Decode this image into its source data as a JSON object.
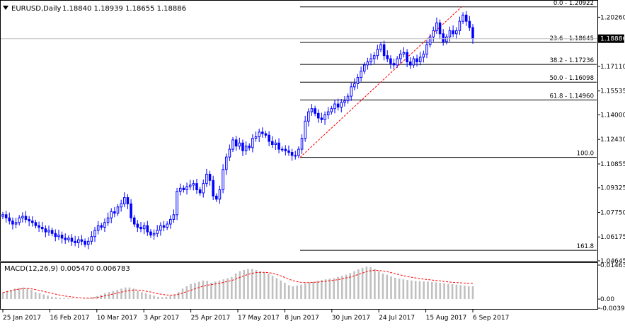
{
  "header": {
    "symbol_tf": "EURUSD,Daily",
    "ohlc": "1.18840 1.18939 1.18655 1.18886"
  },
  "indicator_header": {
    "macd_label": "MACD(12,26,9) 0.005470 0.006783"
  },
  "price_badge": "1.18886",
  "colors": {
    "bull": "#0000ff",
    "bear": "#0000ff",
    "grid": "#000000",
    "fib": "#000000",
    "trend": "#ff0000",
    "histogram": "#c0c0c0",
    "signal": "#ff0000",
    "price_line": "#c0c0c0"
  },
  "chart_data": [
    {
      "type": "candlestick",
      "title": "EURUSD,Daily",
      "x_tick_labels": [
        "25 Jan 2017",
        "16 Feb 2017",
        "10 Mar 2017",
        "3 Apr 2017",
        "25 Apr 2017",
        "17 May 2017",
        "8 Jun 2017",
        "30 Jun 2017",
        "24 Jul 2017",
        "15 Aug 2017",
        "6 Sep 2017"
      ],
      "y_tick_labels": [
        "1.20260",
        "1.18886",
        "1.17110",
        "1.15535",
        "1.14000",
        "1.12430",
        "1.10855",
        "1.09325",
        "1.07750",
        "1.06175",
        "1.04645"
      ],
      "ylim": [
        1.04645,
        1.2132
      ],
      "current_price": 1.18886,
      "fibonacci": [
        {
          "label": "0.0 - 1.20922",
          "value": 1.20922
        },
        {
          "label": "23.6 - 1.18645",
          "value": 1.18645
        },
        {
          "label": "38.2 - 1.17236",
          "value": 1.17236
        },
        {
          "label": "50.0 - 1.16098",
          "value": 1.16098
        },
        {
          "label": "61.8 - 1.14960",
          "value": 1.1496
        },
        {
          "label": "100.0",
          "value": 1.1128
        },
        {
          "label": "161.8",
          "value": 1.0532
        }
      ],
      "close_path": [
        1.076,
        1.074,
        1.072,
        1.07,
        1.071,
        1.074,
        1.075,
        1.073,
        1.072,
        1.071,
        1.069,
        1.068,
        1.067,
        1.065,
        1.066,
        1.064,
        1.062,
        1.063,
        1.061,
        1.06,
        1.061,
        1.059,
        1.058,
        1.06,
        1.059,
        1.057,
        1.059,
        1.062,
        1.066,
        1.069,
        1.068,
        1.071,
        1.074,
        1.078,
        1.077,
        1.081,
        1.083,
        1.087,
        1.083,
        1.074,
        1.07,
        1.068,
        1.067,
        1.069,
        1.065,
        1.063,
        1.064,
        1.066,
        1.069,
        1.068,
        1.07,
        1.073,
        1.076,
        1.091,
        1.093,
        1.092,
        1.094,
        1.095,
        1.096,
        1.092,
        1.09,
        1.096,
        1.102,
        1.098,
        1.088,
        1.086,
        1.092,
        1.105,
        1.113,
        1.118,
        1.124,
        1.12,
        1.122,
        1.117,
        1.12,
        1.119,
        1.125,
        1.126,
        1.129,
        1.128,
        1.127,
        1.123,
        1.121,
        1.122,
        1.118,
        1.118,
        1.117,
        1.116,
        1.114,
        1.114,
        1.118,
        1.125,
        1.136,
        1.142,
        1.144,
        1.141,
        1.138,
        1.137,
        1.14,
        1.142,
        1.144,
        1.147,
        1.145,
        1.148,
        1.149,
        1.152,
        1.158,
        1.16,
        1.164,
        1.168,
        1.172,
        1.174,
        1.176,
        1.178,
        1.182,
        1.185,
        1.178,
        1.176,
        1.173,
        1.172,
        1.176,
        1.179,
        1.18,
        1.174,
        1.172,
        1.176,
        1.174,
        1.177,
        1.179,
        1.185,
        1.19,
        1.194,
        1.199,
        1.192,
        1.187,
        1.19,
        1.194,
        1.192,
        1.194,
        1.2,
        1.204,
        1.2,
        1.196,
        1.189
      ],
      "x_range": [
        "25 Jan 2017",
        "6 Sep 2017"
      ]
    },
    {
      "type": "bar+line",
      "title": "MACD(12,26,9) 0.005470 0.006783",
      "y_tick_labels": [
        "0.01463",
        "0.00",
        "-0.003929"
      ],
      "ylim": [
        -0.003929,
        0.01463
      ],
      "series": [
        {
          "name": "MACD",
          "type": "histogram",
          "values": [
            0.003,
            0.0035,
            0.004,
            0.0045,
            0.0048,
            0.005,
            0.0045,
            0.004,
            0.003,
            0.0025,
            0.002,
            0.0015,
            0.001,
            0.0008,
            0.0005,
            0.0004,
            0.0003,
            0.0002,
            0.0001,
            0.0,
            0.0001,
            0.0003,
            0.0008,
            0.0013,
            0.0018,
            0.0025,
            0.003,
            0.0035,
            0.004,
            0.0045,
            0.005,
            0.005,
            0.0045,
            0.0035,
            0.003,
            0.0025,
            0.002,
            0.0015,
            0.001,
            0.0008,
            0.001,
            0.0015,
            0.002,
            0.003,
            0.0045,
            0.0055,
            0.0065,
            0.007,
            0.0075,
            0.008,
            0.0078,
            0.007,
            0.0075,
            0.008,
            0.0085,
            0.009,
            0.0095,
            0.011,
            0.012,
            0.0125,
            0.013,
            0.013,
            0.0125,
            0.012,
            0.0115,
            0.011,
            0.01,
            0.009,
            0.008,
            0.007,
            0.006,
            0.0055,
            0.0058,
            0.0062,
            0.0068,
            0.0072,
            0.0075,
            0.0078,
            0.0082,
            0.0085,
            0.0088,
            0.009,
            0.0095,
            0.01,
            0.0105,
            0.0112,
            0.012,
            0.0128,
            0.0135,
            0.014,
            0.0138,
            0.013,
            0.012,
            0.011,
            0.0105,
            0.0098,
            0.0092,
            0.0088,
            0.0085,
            0.0082,
            0.008,
            0.0078,
            0.0077,
            0.0076,
            0.0075,
            0.0074,
            0.0072,
            0.007,
            0.0068,
            0.0066,
            0.0064,
            0.0062,
            0.006,
            0.0058,
            0.0056,
            0.0055
          ]
        },
        {
          "name": "Signal",
          "type": "dotted-line",
          "values": [
            0.0028,
            0.0032,
            0.0036,
            0.004,
            0.0043,
            0.0045,
            0.0046,
            0.0044,
            0.0041,
            0.0037,
            0.0033,
            0.0029,
            0.0025,
            0.0021,
            0.0017,
            0.0014,
            0.0011,
            0.0009,
            0.0007,
            0.0005,
            0.0004,
            0.0004,
            0.0005,
            0.0007,
            0.001,
            0.0014,
            0.0018,
            0.0022,
            0.0026,
            0.003,
            0.0034,
            0.0037,
            0.0039,
            0.0039,
            0.0037,
            0.0034,
            0.0031,
            0.0027,
            0.0023,
            0.002,
            0.0018,
            0.0017,
            0.0018,
            0.0021,
            0.0026,
            0.0032,
            0.0038,
            0.0044,
            0.005,
            0.0056,
            0.006,
            0.0062,
            0.0065,
            0.0068,
            0.0072,
            0.0076,
            0.008,
            0.0086,
            0.0093,
            0.01,
            0.0106,
            0.0111,
            0.0114,
            0.0115,
            0.0115,
            0.0114,
            0.0111,
            0.0106,
            0.01,
            0.0093,
            0.0086,
            0.0079,
            0.0075,
            0.0072,
            0.0071,
            0.0071,
            0.0072,
            0.0073,
            0.0075,
            0.0077,
            0.0079,
            0.0081,
            0.0084,
            0.0087,
            0.0091,
            0.0095,
            0.01,
            0.0106,
            0.0112,
            0.0118,
            0.0122,
            0.0124,
            0.0123,
            0.0121,
            0.0118,
            0.0114,
            0.0109,
            0.0105,
            0.0101,
            0.0097,
            0.0094,
            0.0091,
            0.0088,
            0.0086,
            0.0084,
            0.0082,
            0.008,
            0.0078,
            0.0076,
            0.0074,
            0.0072,
            0.0071,
            0.007,
            0.0069,
            0.0068,
            0.0068
          ]
        }
      ]
    }
  ]
}
